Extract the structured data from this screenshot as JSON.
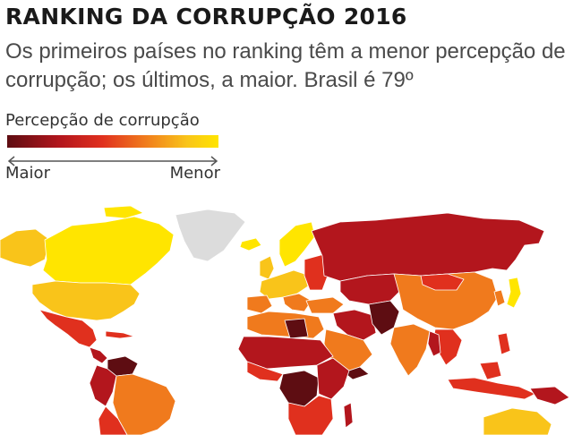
{
  "title": "RANKING DA CORRUPÇÃO 2016",
  "subtitle": "Os primeiros países no ranking têm a menor percepção de corrupção; os últimos, a maior. Brasil é 79º",
  "legend": {
    "title": "Percepção de corrupção",
    "left_label": "Maior",
    "right_label": "Menor",
    "colors": [
      "#5e0d12",
      "#b3161d",
      "#e0301e",
      "#f07a1d",
      "#f9c41a",
      "#ffe500"
    ]
  },
  "map": {
    "no_data_color": "#dcdcdc",
    "ocean_color": "#ffffff"
  }
}
